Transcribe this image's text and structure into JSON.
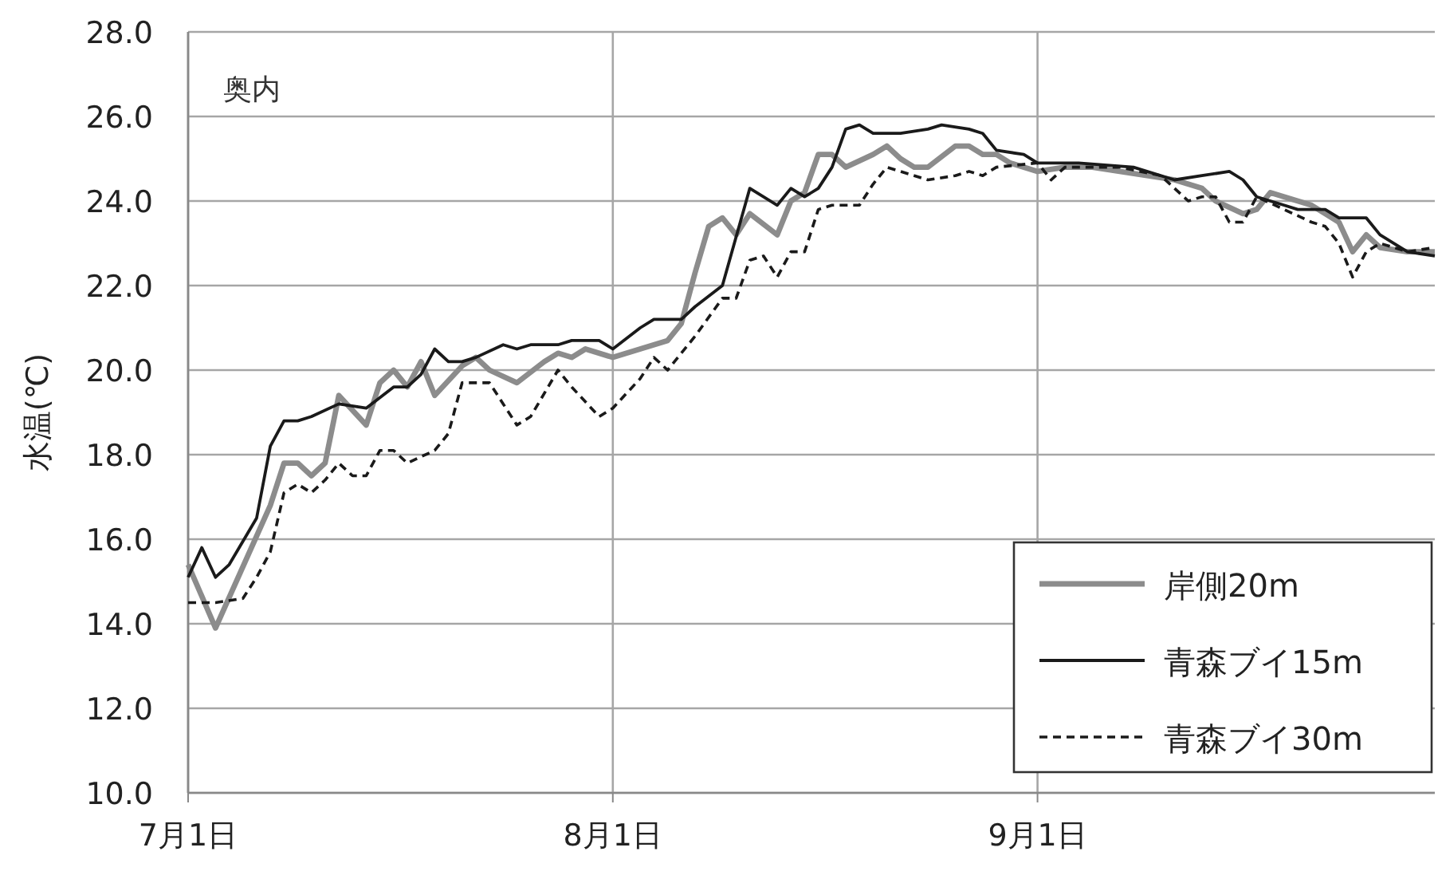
{
  "chart_data": {
    "type": "line",
    "ylabel": "水温(℃)",
    "annotations": [
      "奥内"
    ],
    "xlim": [
      "--07-01",
      "--09-30"
    ],
    "xticks": [
      {
        "value": "--07-01",
        "label": "7月1日"
      },
      {
        "value": "--08-01",
        "label": "8月1日"
      },
      {
        "value": "--09-01",
        "label": "9月1日"
      }
    ],
    "ylim": [
      10,
      28
    ],
    "yticks": [
      {
        "value": 10,
        "label": "10.0"
      },
      {
        "value": 12,
        "label": "12.0"
      },
      {
        "value": 14,
        "label": "14.0"
      },
      {
        "value": 16,
        "label": "16.0"
      },
      {
        "value": 18,
        "label": "18.0"
      },
      {
        "value": 20,
        "label": "20.0"
      },
      {
        "value": 22,
        "label": "22.0"
      },
      {
        "value": 24,
        "label": "24.0"
      },
      {
        "value": 26,
        "label": "26.0"
      },
      {
        "value": 28,
        "label": "28.0"
      }
    ],
    "grid": true,
    "legend": "bottom right",
    "series": [
      {
        "name": "岸側20m",
        "color": "#8c8c8c",
        "line_style": "solid",
        "x": [
          "--07-01",
          "--07-03",
          "--07-07",
          "--07-08",
          "--07-09",
          "--07-10",
          "--07-11",
          "--07-12",
          "--07-14",
          "--07-15",
          "--07-16",
          "--07-17",
          "--07-18",
          "--07-19",
          "--07-21",
          "--07-22",
          "--07-23",
          "--07-25",
          "--07-27",
          "--07-28",
          "--07-29",
          "--07-30",
          "--08-01",
          "--08-03",
          "--08-05",
          "--08-06",
          "--08-07",
          "--08-08",
          "--08-09",
          "--08-10",
          "--08-11",
          "--08-13",
          "--08-14",
          "--08-15",
          "--08-16",
          "--08-17",
          "--08-18",
          "--08-20",
          "--08-21",
          "--08-22",
          "--08-23",
          "--08-24",
          "--08-26",
          "--08-27",
          "--08-28",
          "--08-29",
          "--08-30",
          "--09-01",
          "--09-03",
          "--09-05",
          "--09-07",
          "--09-09",
          "--09-11",
          "--09-13",
          "--09-14",
          "--09-16",
          "--09-17",
          "--09-18",
          "--09-19",
          "--09-21",
          "--09-22",
          "--09-23",
          "--09-24",
          "--09-25",
          "--09-26",
          "--09-28",
          "--09-30"
        ],
        "values": [
          15.4,
          13.9,
          16.8,
          17.8,
          17.8,
          17.5,
          17.8,
          19.4,
          18.7,
          19.7,
          20.0,
          19.6,
          20.2,
          19.4,
          20.1,
          20.3,
          20.0,
          19.7,
          20.2,
          20.4,
          20.3,
          20.5,
          20.3,
          20.5,
          20.7,
          21.1,
          22.3,
          23.4,
          23.6,
          23.2,
          23.7,
          23.2,
          24.0,
          24.2,
          25.1,
          25.1,
          24.8,
          25.1,
          25.3,
          25.0,
          24.8,
          24.8,
          25.3,
          25.3,
          25.1,
          25.1,
          24.9,
          24.7,
          24.8,
          24.8,
          24.7,
          24.6,
          24.5,
          24.3,
          24.0,
          23.7,
          23.8,
          24.2,
          24.1,
          23.9,
          23.7,
          23.5,
          22.8,
          23.2,
          22.9,
          22.8,
          22.8
        ]
      },
      {
        "name": "青森ブイ15m",
        "color": "#1a1a1a",
        "line_style": "solid",
        "x": [
          "--07-01",
          "--07-02",
          "--07-03",
          "--07-04",
          "--07-06",
          "--07-07",
          "--07-08",
          "--07-09",
          "--07-10",
          "--07-12",
          "--07-14",
          "--07-16",
          "--07-17",
          "--07-18",
          "--07-19",
          "--07-20",
          "--07-21",
          "--07-22",
          "--07-24",
          "--07-25",
          "--07-26",
          "--07-28",
          "--07-29",
          "--07-31",
          "--08-01",
          "--08-03",
          "--08-04",
          "--08-06",
          "--08-07",
          "--08-09",
          "--08-11",
          "--08-13",
          "--08-14",
          "--08-15",
          "--08-16",
          "--08-17",
          "--08-18",
          "--08-19",
          "--08-20",
          "--08-22",
          "--08-24",
          "--08-25",
          "--08-27",
          "--08-28",
          "--08-29",
          "--08-31",
          "--09-01",
          "--09-04",
          "--09-08",
          "--09-11",
          "--09-13",
          "--09-15",
          "--09-16",
          "--09-17",
          "--09-19",
          "--09-20",
          "--09-22",
          "--09-23",
          "--09-25",
          "--09-26",
          "--09-28",
          "--09-30"
        ],
        "values": [
          15.1,
          15.8,
          15.1,
          15.4,
          16.5,
          18.2,
          18.8,
          18.8,
          18.9,
          19.2,
          19.1,
          19.6,
          19.6,
          19.9,
          20.5,
          20.2,
          20.2,
          20.3,
          20.6,
          20.5,
          20.6,
          20.6,
          20.7,
          20.7,
          20.5,
          21.0,
          21.2,
          21.2,
          21.5,
          22.0,
          24.3,
          23.9,
          24.3,
          24.1,
          24.3,
          24.8,
          25.7,
          25.8,
          25.6,
          25.6,
          25.7,
          25.8,
          25.7,
          25.6,
          25.2,
          25.1,
          24.9,
          24.9,
          24.8,
          24.5,
          24.6,
          24.7,
          24.5,
          24.1,
          23.9,
          23.8,
          23.8,
          23.6,
          23.6,
          23.2,
          22.8,
          22.7
        ]
      },
      {
        "name": "青森ブイ30m",
        "color": "#1a1a1a",
        "line_style": "dashed",
        "x": [
          "--07-01",
          "--07-03",
          "--07-05",
          "--07-06",
          "--07-07",
          "--07-08",
          "--07-09",
          "--07-10",
          "--07-11",
          "--07-12",
          "--07-13",
          "--07-14",
          "--07-15",
          "--07-16",
          "--07-17",
          "--07-19",
          "--07-20",
          "--07-21",
          "--07-23",
          "--07-24",
          "--07-25",
          "--07-26",
          "--07-28",
          "--07-29",
          "--07-31",
          "--08-01",
          "--08-03",
          "--08-04",
          "--08-05",
          "--08-07",
          "--08-09",
          "--08-10",
          "--08-11",
          "--08-12",
          "--08-13",
          "--08-14",
          "--08-15",
          "--08-16",
          "--08-17",
          "--08-19",
          "--08-20",
          "--08-21",
          "--08-23",
          "--08-24",
          "--08-26",
          "--08-27",
          "--08-28",
          "--08-29",
          "--09-01",
          "--09-02",
          "--09-03",
          "--09-07",
          "--09-10",
          "--09-11",
          "--09-12",
          "--09-13",
          "--09-14",
          "--09-15",
          "--09-16",
          "--09-17",
          "--09-19",
          "--09-21",
          "--09-22",
          "--09-23",
          "--09-24",
          "--09-25",
          "--09-26",
          "--09-28",
          "--09-30"
        ],
        "values": [
          14.5,
          14.5,
          14.6,
          15.1,
          15.7,
          17.1,
          17.3,
          17.1,
          17.4,
          17.8,
          17.5,
          17.5,
          18.1,
          18.1,
          17.8,
          18.1,
          18.5,
          19.7,
          19.7,
          19.2,
          18.7,
          18.9,
          20.0,
          19.6,
          18.9,
          19.1,
          19.8,
          20.3,
          20.0,
          20.8,
          21.7,
          21.7,
          22.6,
          22.7,
          22.2,
          22.8,
          22.8,
          23.8,
          23.9,
          23.9,
          24.4,
          24.8,
          24.6,
          24.5,
          24.6,
          24.7,
          24.6,
          24.8,
          24.9,
          24.5,
          24.8,
          24.8,
          24.6,
          24.3,
          24.0,
          24.1,
          24.1,
          23.5,
          23.5,
          24.1,
          23.8,
          23.5,
          23.4,
          23.0,
          22.2,
          22.8,
          23.0,
          22.8,
          22.9
        ]
      }
    ]
  }
}
